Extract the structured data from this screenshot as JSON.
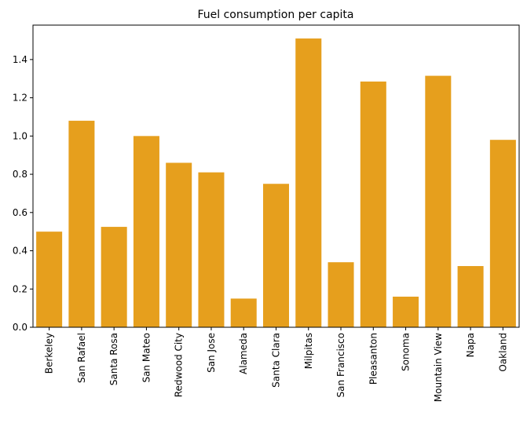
{
  "chart_data": {
    "type": "bar",
    "title": "Fuel consumption per capita",
    "xlabel": "",
    "ylabel": "",
    "categories": [
      "Berkeley",
      "San Rafael",
      "Santa Rosa",
      "San Mateo",
      "Redwood City",
      "San Jose",
      "Alameda",
      "Santa Clara",
      "Milpitas",
      "San Francisco",
      "Pleasanton",
      "Sonoma",
      "Mountain View",
      "Napa",
      "Oakland"
    ],
    "values": [
      0.5,
      1.08,
      0.525,
      1.0,
      0.86,
      0.81,
      0.15,
      0.75,
      1.51,
      0.34,
      1.285,
      0.16,
      1.315,
      0.32,
      0.98
    ],
    "ylim": [
      0,
      1.58
    ],
    "yticks": [
      "0.0",
      "0.2",
      "0.4",
      "0.6",
      "0.8",
      "1.0",
      "1.2",
      "1.4"
    ],
    "grid": false,
    "bar_color": "#e69f1d"
  }
}
